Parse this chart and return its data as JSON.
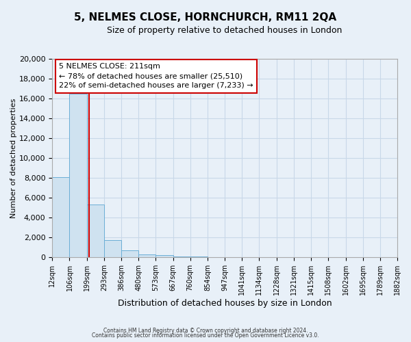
{
  "title": "5, NELMES CLOSE, HORNCHURCH, RM11 2QA",
  "subtitle": "Size of property relative to detached houses in London",
  "bar_values": [
    8100,
    16500,
    5300,
    1750,
    700,
    300,
    200,
    100,
    50
  ],
  "bin_edges": [
    12,
    106,
    199,
    293,
    386,
    480,
    573,
    667,
    760,
    854,
    947,
    1041,
    1134,
    1228,
    1321,
    1415,
    1508,
    1602,
    1695,
    1789,
    1882
  ],
  "bin_labels": [
    "12sqm",
    "106sqm",
    "199sqm",
    "293sqm",
    "386sqm",
    "480sqm",
    "573sqm",
    "667sqm",
    "760sqm",
    "854sqm",
    "947sqm",
    "1041sqm",
    "1134sqm",
    "1228sqm",
    "1321sqm",
    "1415sqm",
    "1508sqm",
    "1602sqm",
    "1695sqm",
    "1789sqm",
    "1882sqm"
  ],
  "bar_color": "#cfe2f0",
  "bar_edge_color": "#6baed6",
  "property_line_x": 211,
  "property_line_color": "#cc0000",
  "xlabel": "Distribution of detached houses by size in London",
  "ylabel": "Number of detached properties",
  "ylim": [
    0,
    20000
  ],
  "yticks": [
    0,
    2000,
    4000,
    6000,
    8000,
    10000,
    12000,
    14000,
    16000,
    18000,
    20000
  ],
  "annotation_title": "5 NELMES CLOSE: 211sqm",
  "annotation_line1": "← 78% of detached houses are smaller (25,510)",
  "annotation_line2": "22% of semi-detached houses are larger (7,233) →",
  "annotation_box_color": "#ffffff",
  "annotation_box_edge": "#cc0000",
  "footer1": "Contains HM Land Registry data © Crown copyright and database right 2024.",
  "footer2": "Contains public sector information licensed under the Open Government Licence v3.0.",
  "background_color": "#e8f0f8",
  "plot_bg_color": "#e8f0f8",
  "grid_color": "#c8d8e8"
}
